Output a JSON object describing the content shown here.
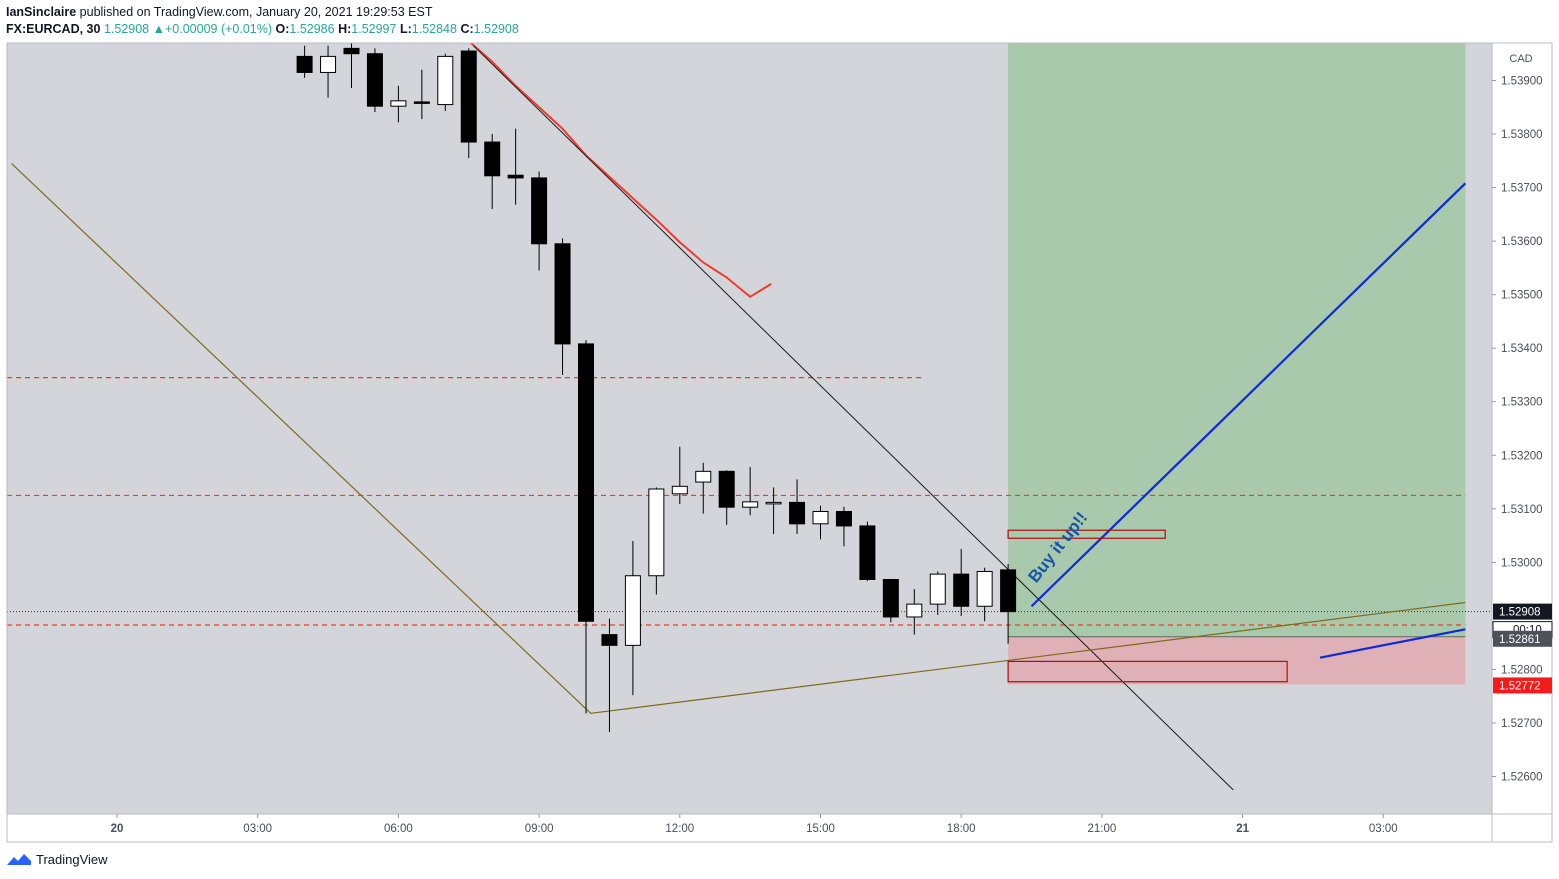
{
  "header": {
    "author": "IanSinclaire",
    "published_text": "published on TradingView.com, January 20, 2021 19:29:53 EST",
    "symbol": "FX:EURCAD, 30",
    "last": "1.52908",
    "change_arrow": "▲",
    "change": "+0.00009 (+0.01%)",
    "o_label": "O:",
    "o_value": "1.52986",
    "h_label": "H:",
    "h_value": "1.52997",
    "l_label": "L:",
    "l_value": "1.52848",
    "c_label": "C:",
    "c_value": "1.52908"
  },
  "footer": {
    "brand": "TradingView"
  },
  "colors": {
    "bg": "#d3d5da",
    "profit": "#a8c9ab",
    "loss": "#e0b0b7",
    "ma": "#f23a2e",
    "trend_blue": "#0d29d9",
    "annotation_text": "#1556a8",
    "red_dash": "#f23a2e",
    "brown": "#7e6a1c",
    "last_price_bg": "#131722",
    "entry_bg": "#4d5159",
    "stop_bg": "#f51b1b"
  },
  "chart_data": {
    "type": "candlestick",
    "symbol": "FX:EURCAD",
    "timeframe": "30",
    "currency": "CAD",
    "ylim": [
      1.5253,
      1.5397
    ],
    "x_ticks": [
      {
        "t": 0,
        "label": "20"
      },
      {
        "t": 6,
        "label": "03:00"
      },
      {
        "t": 12,
        "label": "06:00"
      },
      {
        "t": 18,
        "label": "09:00"
      },
      {
        "t": 24,
        "label": "12:00"
      },
      {
        "t": 30,
        "label": "15:00"
      },
      {
        "t": 36,
        "label": "18:00"
      },
      {
        "t": 42,
        "label": "21:00"
      },
      {
        "t": 48,
        "label": "21"
      },
      {
        "t": 54,
        "label": "03:00"
      }
    ],
    "y_ticks": [
      "1.53900",
      "1.53800",
      "1.53700",
      "1.53600",
      "1.53500",
      "1.53400",
      "1.53300",
      "1.53200",
      "1.53100",
      "1.53000",
      "1.52800",
      "1.52700",
      "1.52600"
    ],
    "candles": [
      {
        "t": 8,
        "o": 1.53945,
        "h": 1.53965,
        "l": 1.53905,
        "c": 1.53915
      },
      {
        "t": 9,
        "o": 1.53915,
        "h": 1.53965,
        "l": 1.53868,
        "c": 1.53945
      },
      {
        "t": 10,
        "o": 1.5396,
        "h": 1.5399,
        "l": 1.53886,
        "c": 1.5395
      },
      {
        "t": 11,
        "o": 1.5395,
        "h": 1.5396,
        "l": 1.53841,
        "c": 1.53852
      },
      {
        "t": 12,
        "o": 1.53852,
        "h": 1.5389,
        "l": 1.53822,
        "c": 1.53862
      },
      {
        "t": 13,
        "o": 1.5386,
        "h": 1.5392,
        "l": 1.53828,
        "c": 1.53858
      },
      {
        "t": 14,
        "o": 1.53855,
        "h": 1.5395,
        "l": 1.53843,
        "c": 1.53945
      },
      {
        "t": 15,
        "o": 1.53955,
        "h": 1.5396,
        "l": 1.53755,
        "c": 1.53785
      },
      {
        "t": 16,
        "o": 1.53785,
        "h": 1.538,
        "l": 1.5366,
        "c": 1.53722
      },
      {
        "t": 17,
        "o": 1.53723,
        "h": 1.5381,
        "l": 1.53668,
        "c": 1.53718
      },
      {
        "t": 18,
        "o": 1.53718,
        "h": 1.5373,
        "l": 1.53545,
        "c": 1.53595
      },
      {
        "t": 19,
        "o": 1.53595,
        "h": 1.53605,
        "l": 1.5335,
        "c": 1.53408
      },
      {
        "t": 20,
        "o": 1.53408,
        "h": 1.53415,
        "l": 1.52718,
        "c": 1.5289
      },
      {
        "t": 21,
        "o": 1.52865,
        "h": 1.52895,
        "l": 1.52683,
        "c": 1.52845
      },
      {
        "t": 22,
        "o": 1.52845,
        "h": 1.5304,
        "l": 1.52752,
        "c": 1.52975
      },
      {
        "t": 23,
        "o": 1.52975,
        "h": 1.5314,
        "l": 1.5294,
        "c": 1.53137
      },
      {
        "t": 24,
        "o": 1.53128,
        "h": 1.53216,
        "l": 1.53109,
        "c": 1.53142
      },
      {
        "t": 25,
        "o": 1.5315,
        "h": 1.53186,
        "l": 1.53091,
        "c": 1.5317
      },
      {
        "t": 26,
        "o": 1.5317,
        "h": 1.53172,
        "l": 1.5307,
        "c": 1.53103
      },
      {
        "t": 27,
        "o": 1.53103,
        "h": 1.53178,
        "l": 1.53088,
        "c": 1.53113
      },
      {
        "t": 28,
        "o": 1.5311,
        "h": 1.5314,
        "l": 1.53053,
        "c": 1.53112
      },
      {
        "t": 29,
        "o": 1.53112,
        "h": 1.53155,
        "l": 1.53053,
        "c": 1.53072
      },
      {
        "t": 30,
        "o": 1.53072,
        "h": 1.53106,
        "l": 1.53043,
        "c": 1.53095
      },
      {
        "t": 31,
        "o": 1.53095,
        "h": 1.53104,
        "l": 1.5303,
        "c": 1.53068
      },
      {
        "t": 32,
        "o": 1.53068,
        "h": 1.53076,
        "l": 1.52965,
        "c": 1.52968
      },
      {
        "t": 33,
        "o": 1.52968,
        "h": 1.52968,
        "l": 1.52888,
        "c": 1.52898
      },
      {
        "t": 34,
        "o": 1.52898,
        "h": 1.5295,
        "l": 1.52865,
        "c": 1.52922
      },
      {
        "t": 35,
        "o": 1.52922,
        "h": 1.52983,
        "l": 1.52902,
        "c": 1.52978
      },
      {
        "t": 36,
        "o": 1.52978,
        "h": 1.53025,
        "l": 1.529,
        "c": 1.52918
      },
      {
        "t": 37,
        "o": 1.52918,
        "h": 1.5299,
        "l": 1.5289,
        "c": 1.52983
      },
      {
        "t": 38,
        "o": 1.52986,
        "h": 1.52997,
        "l": 1.52848,
        "c": 1.52908
      }
    ],
    "moving_average": [
      {
        "t": 14.7,
        "v": 1.53985
      },
      {
        "t": 16,
        "v": 1.53935
      },
      {
        "t": 17,
        "v": 1.5389
      },
      {
        "t": 18,
        "v": 1.5385
      },
      {
        "t": 19,
        "v": 1.5381
      },
      {
        "t": 20,
        "v": 1.5376
      },
      {
        "t": 21,
        "v": 1.5372
      },
      {
        "t": 22,
        "v": 1.5368
      },
      {
        "t": 23,
        "v": 1.5364
      },
      {
        "t": 24,
        "v": 1.53598
      },
      {
        "t": 25,
        "v": 1.5356
      },
      {
        "t": 26,
        "v": 1.53532
      },
      {
        "t": 27,
        "v": 1.53496
      },
      {
        "t": 27.9,
        "v": 1.5352
      }
    ],
    "position": {
      "start_t": 38,
      "end_t": 57.5,
      "entry": 1.52861,
      "target": 1.5397,
      "stop": 1.52772,
      "entry_label": "1.52861",
      "stop_label": "1.52772"
    },
    "last_price_label": "1.52908",
    "countdown_label": "00:10",
    "horizontal_levels": [
      {
        "v": 1.53345,
        "t_end": 34.3
      },
      {
        "v": 1.53125,
        "t_end": 57.5
      },
      {
        "v": 1.52883,
        "t_end": 57.5
      }
    ],
    "last_price_line": 1.52908,
    "trend_lines": [
      {
        "kind": "black",
        "t1": 15.2,
        "v1": 1.53965,
        "t2": 47.6,
        "v2": 1.52575
      },
      {
        "kind": "brown",
        "t1": -4.5,
        "v1": 1.53745,
        "t2": 20.2,
        "v2": 1.52718
      },
      {
        "kind": "brown",
        "t1": 20.2,
        "v1": 1.52718,
        "t2": 57.5,
        "v2": 1.52925
      },
      {
        "kind": "blue",
        "t1": 39,
        "v1": 1.52918,
        "t2": 57.5,
        "v2": 1.53708
      },
      {
        "kind": "blue",
        "t1": 51.3,
        "v1": 1.52822,
        "t2": 57.5,
        "v2": 1.52875
      }
    ],
    "rectangles": [
      {
        "t1": 38,
        "t2": 44.7,
        "v1": 1.5306,
        "v2": 1.53045
      },
      {
        "t1": 38,
        "t2": 49.9,
        "v1": 1.52815,
        "v2": 1.52777
      }
    ],
    "annotation": {
      "text": "Buy it up!!",
      "t": 39.2,
      "v": 1.5296,
      "angle": -52
    }
  }
}
